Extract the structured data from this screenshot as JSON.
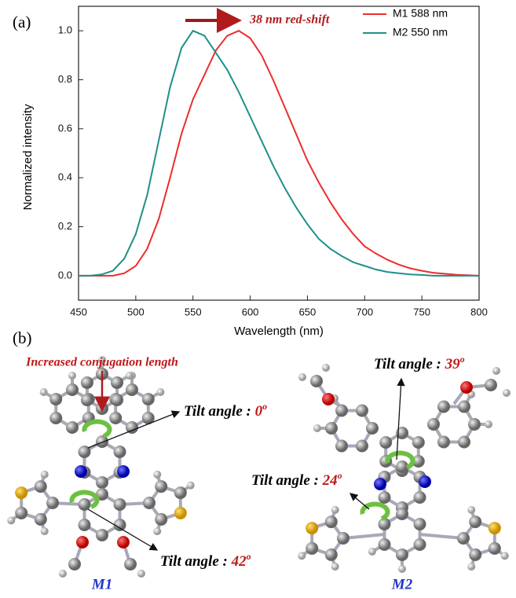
{
  "chart_data": {
    "type": "line",
    "xlabel": "Wavelength (nm)",
    "ylabel": "Normalized intensity",
    "annotation": "38 nm red-shift",
    "x": [
      450,
      460,
      470,
      480,
      490,
      500,
      510,
      520,
      530,
      540,
      550,
      560,
      570,
      580,
      590,
      600,
      610,
      620,
      630,
      640,
      650,
      660,
      670,
      680,
      690,
      700,
      710,
      720,
      730,
      740,
      750,
      760,
      770,
      780,
      790,
      800
    ],
    "series": [
      {
        "name": "M1 588 nm",
        "color": "#ee2d2d",
        "values": [
          0,
          0,
          0,
          0,
          0.01,
          0.04,
          0.11,
          0.23,
          0.4,
          0.58,
          0.72,
          0.82,
          0.92,
          0.98,
          1.0,
          0.97,
          0.9,
          0.8,
          0.69,
          0.58,
          0.47,
          0.38,
          0.3,
          0.23,
          0.17,
          0.12,
          0.09,
          0.065,
          0.045,
          0.03,
          0.02,
          0.012,
          0.008,
          0.004,
          0.002,
          0
        ]
      },
      {
        "name": "M2 550 nm",
        "color": "#1f8f8a",
        "values": [
          0,
          0,
          0.005,
          0.02,
          0.07,
          0.17,
          0.33,
          0.55,
          0.77,
          0.93,
          1.0,
          0.98,
          0.91,
          0.84,
          0.75,
          0.65,
          0.55,
          0.45,
          0.36,
          0.28,
          0.21,
          0.15,
          0.11,
          0.08,
          0.055,
          0.04,
          0.025,
          0.015,
          0.01,
          0.005,
          0.003,
          0,
          0,
          0,
          0,
          0
        ]
      }
    ],
    "xlim": [
      450,
      800
    ],
    "xticks": [
      450,
      500,
      550,
      600,
      650,
      700,
      750,
      800
    ],
    "ylim": [
      -0.1,
      1.1
    ],
    "yticks": [
      {
        "value": 0,
        "label": "0.0"
      },
      0.2,
      0.4,
      0.6,
      0.8,
      {
        "value": 1,
        "label": "1.0"
      }
    ],
    "legend": "upper right"
  },
  "panel_labels": [
    "(a)",
    "(b)"
  ],
  "molecules": {
    "annotation": "Increased conjugation length",
    "names": [
      "M1",
      "M2"
    ],
    "tilts": [
      {
        "label": "Tilt angle : ",
        "angle": "0",
        "sup": "o"
      },
      {
        "label": "Tilt angle : ",
        "angle": "42",
        "sup": "o"
      },
      {
        "label": "Tilt angle : ",
        "angle": "39",
        "sup": "o"
      },
      {
        "label": "Tilt angle : ",
        "angle": "24",
        "sup": "o"
      }
    ]
  }
}
